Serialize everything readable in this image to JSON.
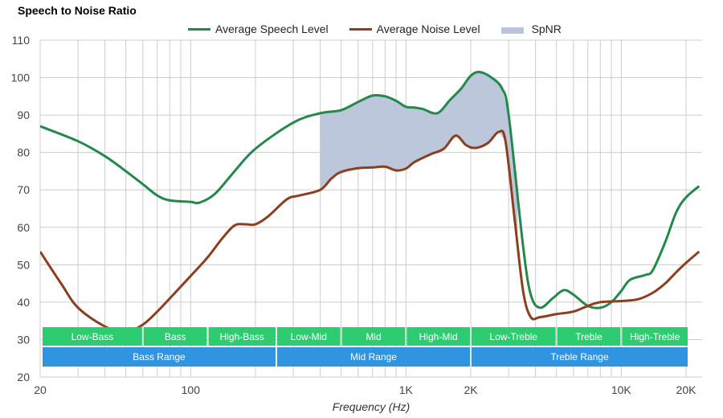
{
  "chart_data": {
    "type": "line",
    "title": "Speech to Noise Ratio",
    "xlabel": "Frequency (Hz)",
    "ylabel": "",
    "xscale": "log",
    "xlim": [
      20,
      23000
    ],
    "ylim": [
      20,
      110
    ],
    "grid": true,
    "legend_position": "top-center",
    "yticks": [
      20,
      30,
      40,
      50,
      60,
      70,
      80,
      90,
      100,
      110
    ],
    "xtick_labels": [
      {
        "value": 20,
        "label": "20"
      },
      {
        "value": 100,
        "label": "100"
      },
      {
        "value": 1000,
        "label": "1K"
      },
      {
        "value": 2000,
        "label": "2K"
      },
      {
        "value": 10000,
        "label": "10K"
      },
      {
        "value": 20000,
        "label": "20K"
      }
    ],
    "legend": [
      {
        "name": "Average Speech Level",
        "kind": "line",
        "color": "#23894a"
      },
      {
        "name": "Average Noise Level",
        "kind": "line",
        "color": "#8b3f1f"
      },
      {
        "name": "SpNR",
        "kind": "area",
        "color": "#b8c4d9"
      }
    ],
    "series": [
      {
        "name": "Average Speech Level",
        "color": "#23894a",
        "x": [
          20,
          30,
          40,
          50,
          60,
          70,
          80,
          100,
          110,
          130,
          160,
          200,
          300,
          400,
          500,
          600,
          700,
          800,
          900,
          1000,
          1100,
          1200,
          1400,
          1600,
          1800,
          2000,
          2200,
          2500,
          2800,
          3000,
          3500,
          3800,
          4200,
          4800,
          5400,
          6000,
          7000,
          8000,
          9000,
          10000,
          11000,
          13000,
          14000,
          16000,
          18000,
          20000,
          23000
        ],
        "y": [
          87,
          83,
          79,
          75,
          71.5,
          68.5,
          67.2,
          66.8,
          66.6,
          69,
          75,
          81,
          88,
          90.5,
          91.3,
          93.5,
          95.2,
          95,
          93.8,
          92.2,
          92,
          91.6,
          90.5,
          94,
          97,
          100.5,
          101.5,
          100,
          97,
          90,
          55,
          42,
          38.5,
          41,
          43.2,
          42,
          39,
          38.5,
          40,
          43,
          46,
          47.3,
          48.5,
          56,
          64,
          68,
          71
        ]
      },
      {
        "name": "Average Noise Level",
        "color": "#8b3f1f",
        "x": [
          20,
          25,
          30,
          40,
          50,
          60,
          70,
          80,
          100,
          120,
          140,
          160,
          180,
          200,
          230,
          280,
          320,
          400,
          450,
          500,
          600,
          700,
          800,
          900,
          1000,
          1100,
          1300,
          1500,
          1700,
          1900,
          2100,
          2400,
          2700,
          2900,
          3200,
          3500,
          3800,
          4200,
          5000,
          6000,
          7000,
          8000,
          10000,
          12000,
          14000,
          16000,
          18000,
          20000,
          23000
        ],
        "y": [
          53.5,
          45,
          38.5,
          33.5,
          32,
          34,
          37.5,
          41,
          47,
          52,
          57,
          60.5,
          60.8,
          60.8,
          63,
          67.5,
          68.5,
          70,
          73,
          74.8,
          75.8,
          76,
          76.2,
          75.2,
          75.7,
          77.5,
          79.5,
          81,
          84.5,
          82,
          81.2,
          82.5,
          85.5,
          83,
          62,
          43,
          36,
          36,
          36.8,
          37.5,
          39,
          40,
          40.3,
          40.8,
          42.5,
          45,
          48,
          50.5,
          53.5
        ]
      }
    ],
    "spnr_area": {
      "name": "SpNR",
      "color": "#b8c4d9",
      "x_range": [
        400,
        3300
      ]
    },
    "bands": {
      "sub": [
        {
          "label": "Low-Bass",
          "from": 20,
          "to": 60
        },
        {
          "label": "Bass",
          "from": 60,
          "to": 120
        },
        {
          "label": "High-Bass",
          "from": 120,
          "to": 250
        },
        {
          "label": "Low-Mid",
          "from": 250,
          "to": 500
        },
        {
          "label": "Mid",
          "from": 500,
          "to": 1000
        },
        {
          "label": "High-Mid",
          "from": 1000,
          "to": 2000
        },
        {
          "label": "Low-Treble",
          "from": 2000,
          "to": 5000
        },
        {
          "label": "Treble",
          "from": 5000,
          "to": 10000
        },
        {
          "label": "High-Treble",
          "from": 10000,
          "to": 20000
        }
      ],
      "range": [
        {
          "label": "Bass Range",
          "from": 20,
          "to": 250
        },
        {
          "label": "Mid Range",
          "from": 250,
          "to": 2000
        },
        {
          "label": "Treble Range",
          "from": 2000,
          "to": 20000
        }
      ],
      "sub_color": "#2ecc71",
      "range_color": "#2f95e0"
    }
  }
}
